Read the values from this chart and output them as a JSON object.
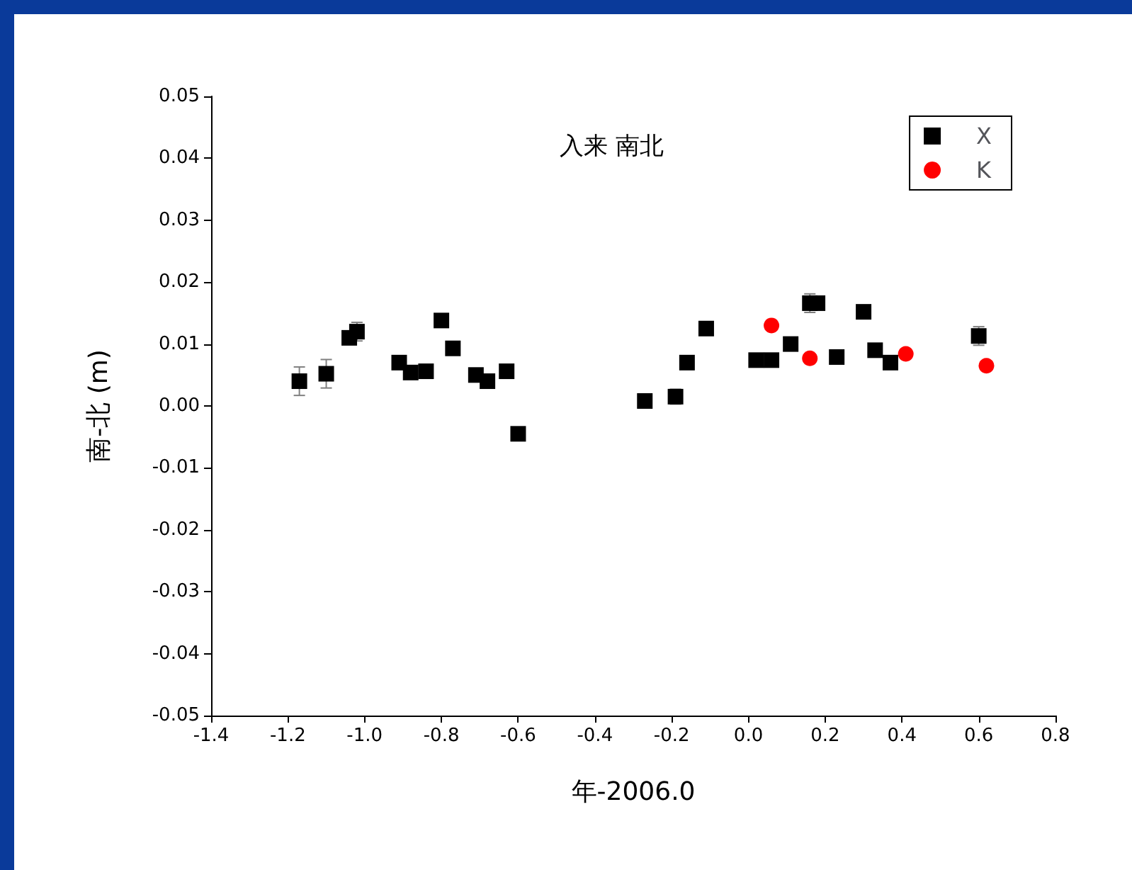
{
  "chart_data": {
    "type": "scatter",
    "title": "入来 南北",
    "xlabel": "年-2006.0",
    "ylabel": "南-北 (m)",
    "xlim": [
      -1.4,
      0.8
    ],
    "xticks": [
      -1.4,
      -1.2,
      {
        "value": -1,
        "label": "-1.0"
      },
      -0.8,
      -0.6,
      -0.4,
      -0.2,
      {
        "value": 0,
        "label": "0.0"
      },
      0.2,
      0.4,
      0.6,
      0.8
    ],
    "ylim": [
      -0.05,
      0.05
    ],
    "yticks": [
      -0.05,
      -0.04,
      -0.03,
      -0.02,
      -0.01,
      {
        "value": 0,
        "label": "0.00"
      },
      0.01,
      0.02,
      0.03,
      0.04,
      0.05
    ],
    "legend": "top right",
    "grid": false,
    "series": [
      {
        "name": "X",
        "color": "#000000",
        "marker": "square",
        "x": [
          -1.17,
          -1.1,
          -1.04,
          -1.02,
          -0.91,
          -0.88,
          -0.84,
          -0.8,
          -0.77,
          -0.71,
          -0.68,
          -0.63,
          -0.6,
          -0.27,
          -0.19,
          -0.16,
          -0.11,
          0.02,
          0.06,
          0.11,
          0.16,
          0.18,
          0.23,
          0.3,
          0.33,
          0.37,
          0.6
        ],
        "values": [
          0.004,
          0.0052,
          0.011,
          0.012,
          0.007,
          0.0054,
          0.0056,
          0.0138,
          0.0093,
          0.005,
          0.004,
          0.0056,
          -0.0045,
          0.0008,
          0.0015,
          0.007,
          0.0125,
          0.0074,
          0.0074,
          0.01,
          0.0166,
          0.0166,
          0.0079,
          0.0152,
          0.009,
          0.007,
          0.0113
        ],
        "errors": [
          0.0023,
          0.0023,
          0.001,
          0.0015,
          0.001,
          0.001,
          0.001,
          0.001,
          0.001,
          0.001,
          0.001,
          0.001,
          0.001,
          0.001,
          0.0012,
          0.001,
          0.001,
          0.001,
          0.001,
          0.001,
          0.0015,
          0.001,
          0.001,
          0.001,
          0.001,
          0.001,
          0.0015
        ]
      },
      {
        "name": "K",
        "color": "#ff0000",
        "marker": "circle",
        "x": [
          0.06,
          0.16,
          0.41,
          0.62
        ],
        "values": [
          0.013,
          0.0077,
          0.0084,
          0.0065
        ]
      }
    ]
  }
}
